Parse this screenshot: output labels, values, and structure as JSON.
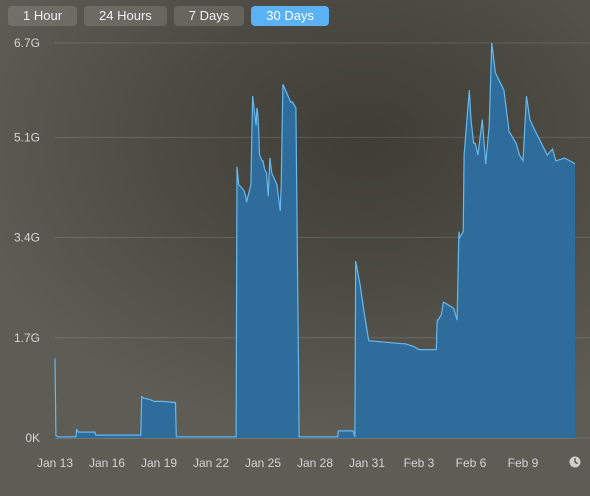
{
  "tabs": [
    {
      "label": "1 Hour",
      "active": false
    },
    {
      "label": "24 Hours",
      "active": false
    },
    {
      "label": "7 Days",
      "active": false
    },
    {
      "label": "30 Days",
      "active": true
    }
  ],
  "colors": {
    "accent": "#5ab1f3",
    "fill": "#2e6c9b",
    "line": "#67b8ee",
    "grid": "rgba(255,255,255,0.13)"
  },
  "chart_data": {
    "type": "area",
    "y_ticks": [
      "6.7G",
      "5.1G",
      "3.4G",
      "1.7G",
      "0K"
    ],
    "y_tick_values": [
      6.7,
      5.1,
      3.4,
      1.7,
      0
    ],
    "x_ticks": [
      "Jan 13",
      "Jan 16",
      "Jan 19",
      "Jan 22",
      "Jan 25",
      "Jan 28",
      "Jan 31",
      "Feb 3",
      "Feb 6",
      "Feb 9"
    ],
    "x_tick_days": [
      0,
      3,
      6,
      9,
      12,
      15,
      18,
      21,
      24,
      27
    ],
    "x_unit": "days",
    "ylim": [
      0,
      6.7
    ],
    "xlim": [
      0,
      30
    ],
    "grid": true,
    "series": [
      {
        "x": [
          0,
          0.05,
          0.15,
          1.2,
          1.25,
          1.35,
          2.3,
          2.35,
          4.95,
          5.0,
          5.1,
          5.5,
          5.7,
          6.2,
          6.95,
          7.0,
          10.45,
          10.5,
          10.6,
          10.9,
          11.0,
          11.05,
          11.3,
          11.4,
          11.6,
          11.65,
          11.7,
          11.75,
          11.8,
          11.95,
          12.0,
          12.1,
          12.2,
          12.3,
          12.4,
          12.5,
          12.8,
          13.0,
          13.05,
          13.15,
          13.6,
          13.7,
          13.9,
          14.05,
          14.08,
          14.1,
          16.3,
          16.35,
          17.2,
          17.3,
          17.35,
          17.6,
          17.8,
          18.1,
          20.0,
          20.2,
          20.7,
          21.0,
          21.6,
          22.0,
          22.05,
          22.1,
          22.3,
          22.4,
          22.45,
          23.0,
          23.2,
          23.3,
          23.35,
          23.55,
          23.6,
          23.9,
          24.0,
          24.15,
          24.25,
          24.4,
          24.65,
          24.85,
          25.05,
          25.2,
          25.4,
          25.9,
          26.2,
          26.6,
          26.8,
          27.0,
          27.2,
          27.4,
          27.55,
          28.4,
          28.7,
          28.9,
          29.4,
          29.7,
          30.0
        ],
        "y": [
          1.35,
          0.05,
          0.02,
          0.02,
          0.14,
          0.1,
          0.1,
          0.05,
          0.05,
          0.7,
          0.68,
          0.65,
          0.62,
          0.62,
          0.6,
          0.02,
          0.02,
          4.6,
          4.3,
          4.2,
          4.1,
          4.0,
          4.3,
          5.8,
          5.3,
          5.6,
          5.5,
          5.2,
          4.8,
          4.7,
          4.7,
          4.55,
          4.5,
          4.1,
          4.75,
          4.5,
          4.3,
          3.85,
          4.3,
          6.0,
          5.7,
          5.7,
          5.6,
          1.2,
          0.02,
          0.02,
          0.02,
          0.12,
          0.12,
          0.02,
          3.0,
          2.6,
          2.2,
          1.65,
          1.6,
          1.6,
          1.55,
          1.5,
          1.5,
          1.5,
          2.0,
          2.0,
          2.1,
          2.3,
          2.3,
          2.2,
          2.0,
          3.5,
          3.4,
          3.5,
          4.8,
          5.9,
          5.4,
          5.0,
          5.0,
          4.8,
          5.4,
          4.65,
          5.3,
          6.7,
          6.2,
          5.9,
          5.2,
          5.0,
          4.8,
          4.7,
          5.8,
          5.4,
          5.3,
          4.8,
          4.9,
          4.7,
          4.75,
          4.7,
          4.65
        ]
      }
    ]
  }
}
